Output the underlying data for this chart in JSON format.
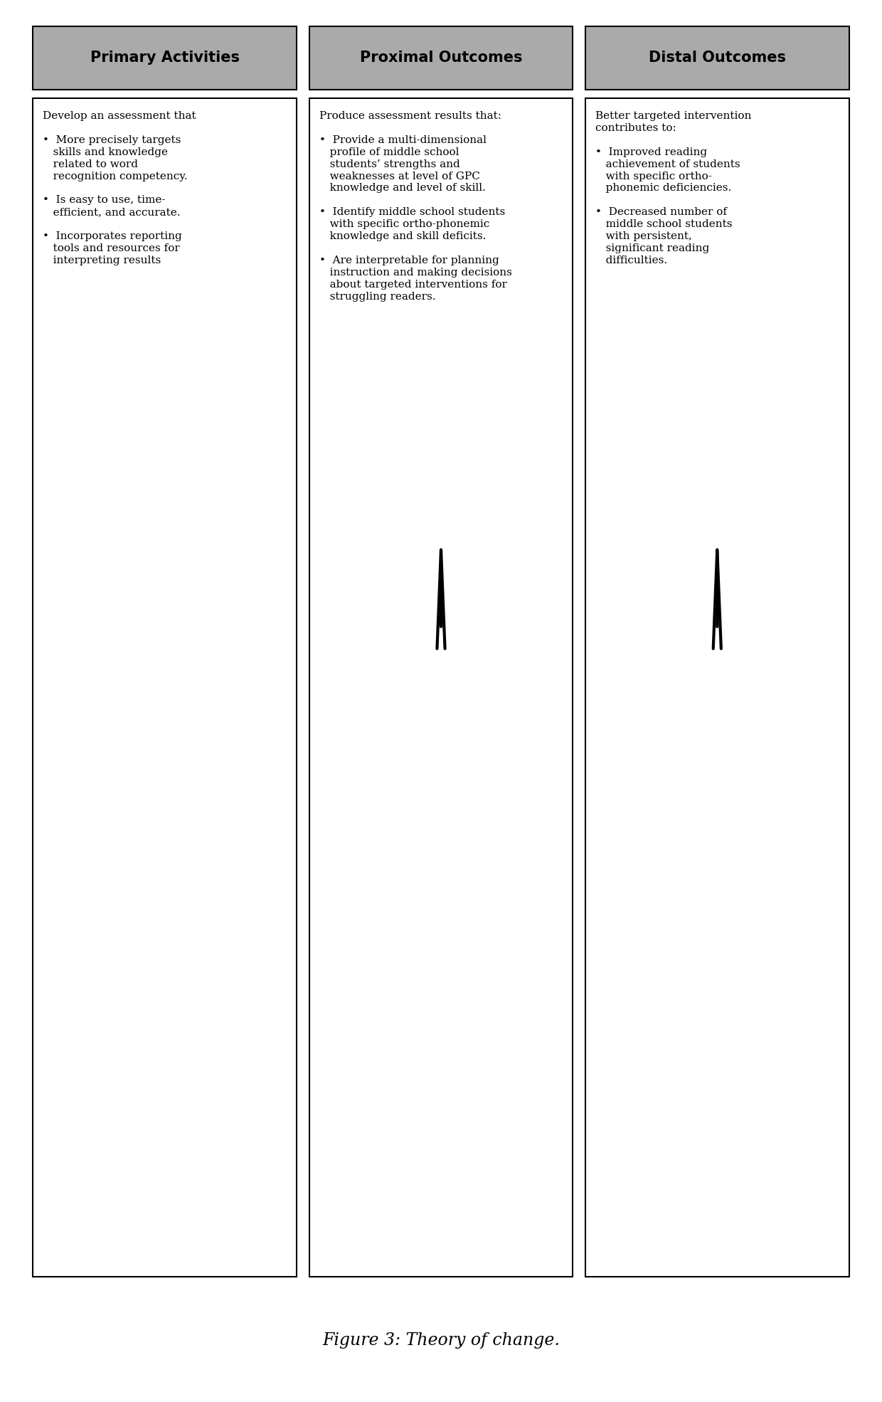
{
  "title": "Figure 3: Theory of change.",
  "background_color": "#ffffff",
  "header_bg_color": "#aaaaaa",
  "header_text_color": "#000000",
  "box_bg_color": "#ffffff",
  "box_border_color": "#000000",
  "headers": [
    "Primary Activities",
    "Proximal Outcomes",
    "Distal Outcomes"
  ],
  "primary_activities_lines": [
    "Develop an assessment that",
    "",
    "•  More precisely targets",
    "   skills and knowledge",
    "   related to word",
    "   recognition competency.",
    "",
    "•  Is easy to use, time-",
    "   efficient, and accurate.",
    "",
    "•  Incorporates reporting",
    "   tools and resources for",
    "   interpreting results"
  ],
  "proximal_outcomes_lines": [
    "Produce assessment results that:",
    "",
    "•  Provide a multi-dimensional",
    "   profile of middle school",
    "   students’ strengths and",
    "   weaknesses at level of GPC",
    "   knowledge and level of skill.",
    "",
    "•  Identify middle school students",
    "   with specific ortho-phonemic",
    "   knowledge and skill deficits.",
    "",
    "•  Are interpretable for planning",
    "   instruction and making decisions",
    "   about targeted interventions for",
    "   struggling readers."
  ],
  "distal_outcomes_lines": [
    "Better targeted intervention",
    "contributes to:",
    "",
    "•  Improved reading",
    "   achievement of students",
    "   with specific ortho-",
    "   phonemic deficiencies.",
    "",
    "•  Decreased number of",
    "   middle school students",
    "   with persistent,",
    "   significant reading",
    "   difficulties."
  ],
  "header_fontsize": 15,
  "content_fontsize": 11,
  "title_fontsize": 17
}
